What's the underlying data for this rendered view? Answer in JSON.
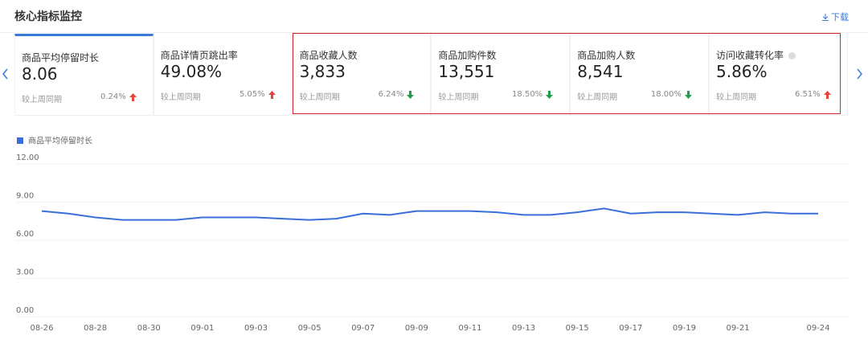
{
  "header": {
    "title": "核心指标监控",
    "download": "下载"
  },
  "cards": [
    {
      "name": "商品平均停留时长",
      "value": "8.06",
      "compare": "较上周同期",
      "change": "0.24%",
      "trend": "up"
    },
    {
      "name": "商品详情页跳出率",
      "value": "49.08%",
      "compare": "较上周同期",
      "change": "5.05%",
      "trend": "up"
    },
    {
      "name": "商品收藏人数",
      "value": "3,833",
      "compare": "较上周同期",
      "change": "6.24%",
      "trend": "down"
    },
    {
      "name": "商品加购件数",
      "value": "13,551",
      "compare": "较上周同期",
      "change": "18.50%",
      "trend": "down"
    },
    {
      "name": "商品加购人数",
      "value": "8,541",
      "compare": "较上周同期",
      "change": "18.00%",
      "trend": "down"
    },
    {
      "name": "访问收藏转化率",
      "value": "5.86%",
      "compare": "较上周同期",
      "change": "6.51%",
      "trend": "up"
    }
  ],
  "chart_data": {
    "type": "line",
    "categories": [
      "08-26",
      null,
      "08-28",
      null,
      "08-30",
      null,
      "09-01",
      null,
      "09-03",
      null,
      "09-05",
      null,
      "09-07",
      null,
      "09-09",
      null,
      "09-11",
      null,
      "09-13",
      null,
      "09-15",
      null,
      "09-17",
      null,
      "09-19",
      null,
      "09-21",
      null,
      null,
      "09-24"
    ],
    "series": [
      {
        "name": "商品平均停留时长",
        "color": "#3a6fd8",
        "values": [
          8.3,
          8.1,
          7.8,
          7.6,
          7.6,
          7.6,
          7.8,
          7.8,
          7.8,
          7.7,
          7.6,
          7.7,
          8.1,
          8.0,
          8.3,
          8.3,
          8.3,
          8.2,
          8.0,
          8.0,
          8.2,
          8.5,
          8.1,
          8.2,
          8.2,
          8.1,
          8.0,
          8.2,
          8.1,
          8.1
        ]
      }
    ],
    "ylim": [
      0,
      12
    ],
    "yticks": [
      {
        "value": 0,
        "label": "0.00"
      },
      {
        "value": 3,
        "label": "3.00"
      },
      {
        "value": 6,
        "label": "6.00"
      },
      {
        "value": 9,
        "label": "9.00"
      },
      {
        "value": 12,
        "label": "12.00"
      }
    ],
    "grid": true
  }
}
